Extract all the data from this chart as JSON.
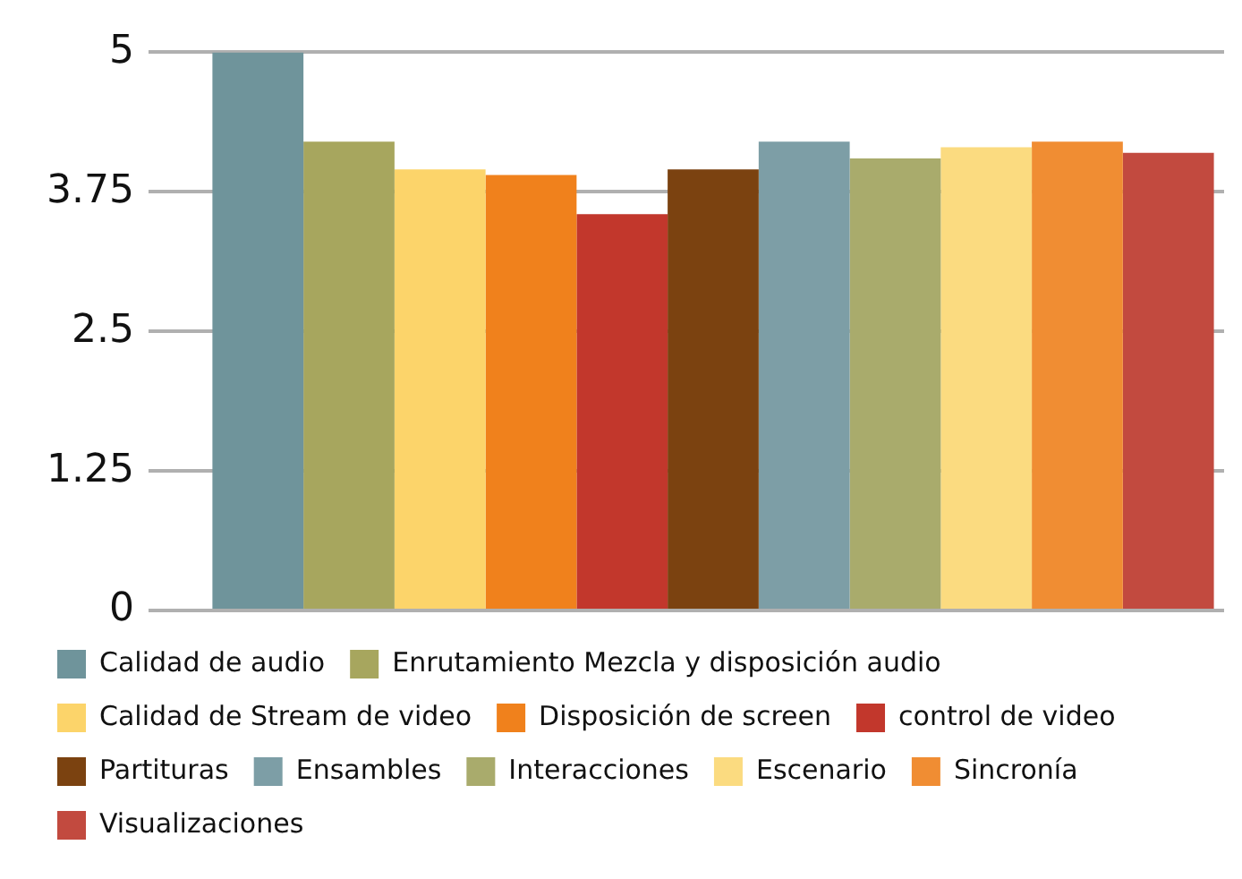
{
  "chart_data": {
    "type": "bar",
    "categories": [
      null
    ],
    "series": [
      {
        "name": "Calidad de audio",
        "color": "#6f949b",
        "values": [
          5
        ]
      },
      {
        "name": "Enrutamiento Mezcla y disposición audio",
        "color": "#a7a65e",
        "values": [
          4.2
        ]
      },
      {
        "name": "Calidad de Stream de video",
        "color": "#fcd46a",
        "values": [
          3.95
        ]
      },
      {
        "name": "Disposición de screen",
        "color": "#f0811c",
        "values": [
          3.9
        ]
      },
      {
        "name": "control de video",
        "color": "#c2372c",
        "values": [
          3.55
        ]
      },
      {
        "name": "Partituras",
        "color": "#7b4210",
        "values": [
          3.95
        ]
      },
      {
        "name": "Ensambles",
        "color": "#7d9ea6",
        "values": [
          4.2
        ]
      },
      {
        "name": "Interacciones",
        "color": "#a9ab6c",
        "values": [
          4.05
        ]
      },
      {
        "name": "Escenario",
        "color": "#fbdb80",
        "values": [
          4.15
        ]
      },
      {
        "name": "Sincronía",
        "color": "#f08d33",
        "values": [
          4.2
        ]
      },
      {
        "name": "Visualizaciones",
        "color": "#c24a3f",
        "values": [
          4.1
        ]
      }
    ],
    "ylim": [
      0,
      5
    ],
    "yticks": [
      0,
      1.25,
      2.5,
      3.75,
      5
    ],
    "grid": "y",
    "tick_labels": "y",
    "legend": "bottom"
  }
}
